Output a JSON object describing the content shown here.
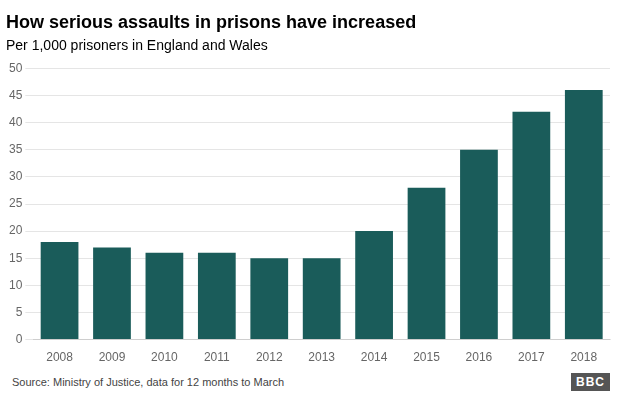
{
  "chart_data": {
    "type": "bar",
    "title": "How serious assaults in prisons have increased",
    "subtitle": "Per 1,000 prisoners in England and Wales",
    "annotations": [
      "Source: Ministry of Justice, data for 12 months to March",
      "BBC"
    ],
    "categories": [
      "2008",
      "2009",
      "2010",
      "2011",
      "2012",
      "2013",
      "2014",
      "2015",
      "2016",
      "2017",
      "2018"
    ],
    "values": [
      18,
      17,
      16,
      16,
      15,
      15,
      20,
      28,
      35,
      42,
      46
    ],
    "color": "#1a5c5a",
    "ylim": [
      0,
      50
    ],
    "yticks": [
      0,
      5,
      10,
      15,
      20,
      25,
      30,
      35,
      40,
      45,
      50
    ],
    "grid": true
  }
}
